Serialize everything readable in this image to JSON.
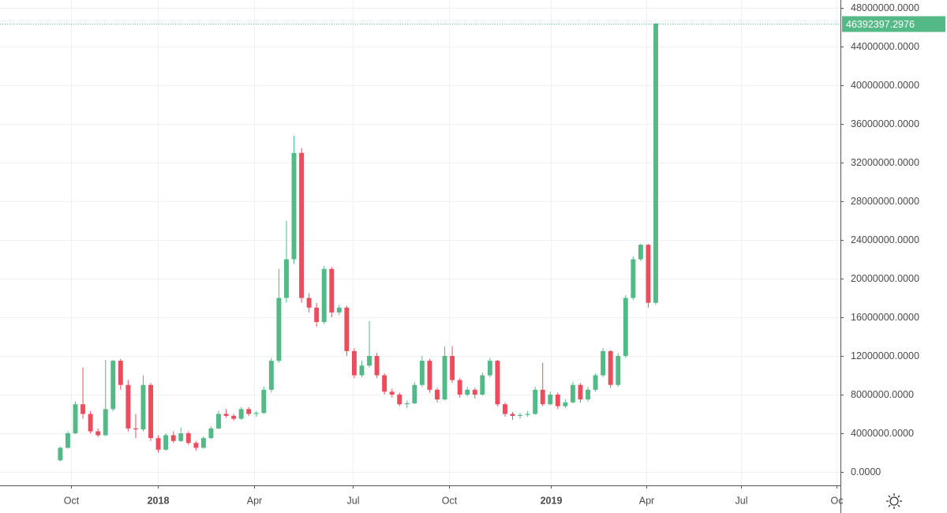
{
  "chart_data": {
    "type": "candlestick",
    "categories": [
      null,
      null,
      null,
      null,
      null,
      null,
      null,
      null,
      null,
      null,
      null,
      null,
      null,
      null,
      null,
      null,
      null,
      null,
      null,
      null,
      null,
      null,
      null,
      null,
      null,
      null,
      null,
      null,
      null,
      null,
      null,
      null,
      null,
      null,
      null,
      null,
      null,
      null,
      null,
      null,
      null,
      null,
      null,
      null,
      null,
      null,
      null,
      null,
      null,
      null,
      null,
      null,
      null,
      null,
      null,
      null,
      null,
      null,
      null,
      null,
      null,
      null,
      null,
      null,
      null,
      null,
      null,
      null,
      null,
      null,
      null,
      null,
      null,
      null,
      null,
      null,
      null,
      null,
      null,
      null
    ],
    "open": [
      1200000,
      2500000,
      4000000,
      7000000,
      6000000,
      4200000,
      3800000,
      6500000,
      11500000,
      9000000,
      4500000,
      4400000,
      9000000,
      3500000,
      2300000,
      3800000,
      3200000,
      4000000,
      3000000,
      2500000,
      3500000,
      4500000,
      6000000,
      5800000,
      5500000,
      6500000,
      6000000,
      6100000,
      8500000,
      11500000,
      18000000,
      22000000,
      33000000,
      18000000,
      17000000,
      15500000,
      21000000,
      16500000,
      17000000,
      12500000,
      10000000,
      11000000,
      12000000,
      10000000,
      8300000,
      8000000,
      7000000,
      7100000,
      9000000,
      11500000,
      8500000,
      7500000,
      12000000,
      9500000,
      8000000,
      8500000,
      8000000,
      10000000,
      11500000,
      7000000,
      6000000,
      5800000,
      5900000,
      6000000,
      8500000,
      7000000,
      8000000,
      6800000,
      7200000,
      9000000,
      7500000,
      8500000,
      10000000,
      12500000,
      9000000,
      12000000,
      18000000,
      22000000,
      23500000,
      17500000
    ],
    "high": [
      2600000,
      4200000,
      7300000,
      10800000,
      6300000,
      4500000,
      11600000,
      11600000,
      11700000,
      9500000,
      6000000,
      10000000,
      9200000,
      3800000,
      4000000,
      4200000,
      4600000,
      4200000,
      3200000,
      3700000,
      4700000,
      6300000,
      6500000,
      6000000,
      6700000,
      6700000,
      6300000,
      8800000,
      11800000,
      21000000,
      26000000,
      34800000,
      33500000,
      18500000,
      17500000,
      21300000,
      21200000,
      17300000,
      17200000,
      12800000,
      11500000,
      15600000,
      12300000,
      10200000,
      8600000,
      8200000,
      7400000,
      9300000,
      12000000,
      11700000,
      8700000,
      13000000,
      13000000,
      9700000,
      8800000,
      8700000,
      10300000,
      11800000,
      11600000,
      7200000,
      6200000,
      6100000,
      6300000,
      8800000,
      11300000,
      8300000,
      8200000,
      7500000,
      9300000,
      9200000,
      8800000,
      10200000,
      12800000,
      12600000,
      12300000,
      18300000,
      22300000,
      23600000,
      23600000,
      46392397.2976
    ],
    "low": [
      1100000,
      2400000,
      3900000,
      5500000,
      4000000,
      3600000,
      3700000,
      6300000,
      8500000,
      4200000,
      3500000,
      4200000,
      3200000,
      2000000,
      2200000,
      3000000,
      3100000,
      2800000,
      2200000,
      2400000,
      3400000,
      4400000,
      5600000,
      5300000,
      5400000,
      5800000,
      5700000,
      6000000,
      8200000,
      11300000,
      17500000,
      21500000,
      17500000,
      16500000,
      15000000,
      15300000,
      16000000,
      16200000,
      12000000,
      9700000,
      9800000,
      10800000,
      9700000,
      8000000,
      7700000,
      6800000,
      6600000,
      7000000,
      8800000,
      8200000,
      7200000,
      7400000,
      9200000,
      7700000,
      7800000,
      7600000,
      7900000,
      9800000,
      6800000,
      5700000,
      5400000,
      5500000,
      5700000,
      5900000,
      6800000,
      6900000,
      6500000,
      6600000,
      7100000,
      7200000,
      7300000,
      8300000,
      9800000,
      8700000,
      8800000,
      11800000,
      17800000,
      21800000,
      17000000,
      17300000
    ],
    "close": [
      2500000,
      4000000,
      7000000,
      6000000,
      4200000,
      3800000,
      6500000,
      11500000,
      9000000,
      4500000,
      4400000,
      9000000,
      3500000,
      2300000,
      3800000,
      3200000,
      4000000,
      3000000,
      2500000,
      3500000,
      4500000,
      6000000,
      5800000,
      5500000,
      6500000,
      6000000,
      6100000,
      8500000,
      11500000,
      18000000,
      22000000,
      33000000,
      18000000,
      17000000,
      15500000,
      21000000,
      16500000,
      17000000,
      12500000,
      10000000,
      11000000,
      12000000,
      10000000,
      8300000,
      8000000,
      7000000,
      7100000,
      9000000,
      11500000,
      8500000,
      7500000,
      12000000,
      9500000,
      8000000,
      8500000,
      8000000,
      10000000,
      11500000,
      7000000,
      6000000,
      5800000,
      5900000,
      6000000,
      8500000,
      7000000,
      8000000,
      6800000,
      7200000,
      9000000,
      7500000,
      8500000,
      10000000,
      12500000,
      9000000,
      12000000,
      18000000,
      22000000,
      23500000,
      17500000,
      46392397.2976
    ],
    "up_color": "#53b987",
    "down_color": "#eb4d5c",
    "xlim": [
      -8,
      103.5
    ],
    "xticks": [
      {
        "value": 1.4,
        "label": "Oct"
      },
      {
        "value": 12.9,
        "label": "2018"
      },
      {
        "value": 25.7,
        "label": "Apr"
      },
      {
        "value": 38.8,
        "label": "Jul"
      },
      {
        "value": 51.6,
        "label": "Oct"
      },
      {
        "value": 65.1,
        "label": "2019"
      },
      {
        "value": 77.7,
        "label": "Apr"
      },
      {
        "value": 90.3,
        "label": "Jul"
      },
      {
        "value": 103.0,
        "label": "Oc"
      }
    ],
    "ylim": [
      -1390000,
      48820000
    ],
    "yticks": [
      {
        "value": 0,
        "label": "0.0000"
      },
      {
        "value": 4000000,
        "label": "4000000.0000"
      },
      {
        "value": 8000000,
        "label": "8000000.0000"
      },
      {
        "value": 12000000,
        "label": "12000000.0000"
      },
      {
        "value": 16000000,
        "label": "16000000.0000"
      },
      {
        "value": 20000000,
        "label": "20000000.0000"
      },
      {
        "value": 24000000,
        "label": "24000000.0000"
      },
      {
        "value": 28000000,
        "label": "28000000.0000"
      },
      {
        "value": 32000000,
        "label": "32000000.0000"
      },
      {
        "value": 36000000,
        "label": "36000000.0000"
      },
      {
        "value": 40000000,
        "label": "40000000.0000"
      },
      {
        "value": 44000000,
        "label": "44000000.0000"
      },
      {
        "value": 48000000,
        "label": "48000000.0000"
      }
    ],
    "grid": true
  }
}
